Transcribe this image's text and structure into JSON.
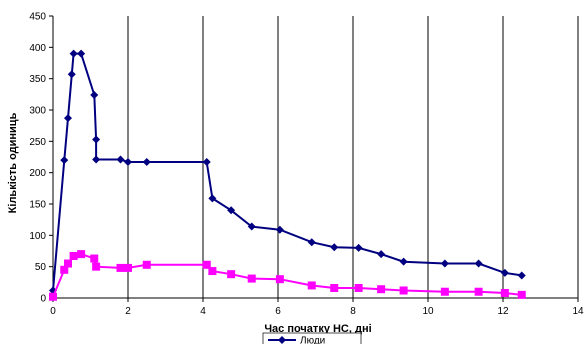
{
  "chart_data": {
    "type": "line",
    "xlabel": "Час початку НС, дні",
    "ylabel": "Кількість одиниць",
    "xlim": [
      0,
      14
    ],
    "ylim": [
      0,
      450
    ],
    "x_ticks": [
      0,
      2,
      4,
      6,
      8,
      10,
      12,
      14
    ],
    "y_ticks": [
      0,
      50,
      100,
      150,
      200,
      250,
      300,
      350,
      400,
      450
    ],
    "grid": "vertical",
    "legend_position": "bottom-center",
    "series": [
      {
        "name": "Люди",
        "color": "#000080",
        "marker": "diamond",
        "points": [
          [
            0.0,
            12
          ],
          [
            0.3,
            220
          ],
          [
            0.4,
            287
          ],
          [
            0.5,
            357
          ],
          [
            0.55,
            390
          ],
          [
            0.75,
            390
          ],
          [
            1.1,
            324
          ],
          [
            1.15,
            253
          ],
          [
            1.15,
            221
          ],
          [
            1.8,
            221
          ],
          [
            2.0,
            217
          ],
          [
            2.5,
            217
          ],
          [
            4.1,
            217
          ],
          [
            4.25,
            159
          ],
          [
            4.75,
            140
          ],
          [
            5.3,
            114
          ],
          [
            6.05,
            109
          ],
          [
            6.9,
            89
          ],
          [
            7.5,
            81
          ],
          [
            8.15,
            80
          ],
          [
            8.75,
            70
          ],
          [
            9.35,
            58
          ],
          [
            10.45,
            55
          ],
          [
            11.35,
            55
          ],
          [
            12.05,
            40
          ],
          [
            12.5,
            36
          ]
        ]
      },
      {
        "name": "",
        "color": "#FF00FF",
        "marker": "square",
        "points": [
          [
            0.0,
            2
          ],
          [
            0.3,
            45
          ],
          [
            0.4,
            55
          ],
          [
            0.55,
            67
          ],
          [
            0.75,
            70
          ],
          [
            1.1,
            63
          ],
          [
            1.15,
            50
          ],
          [
            1.8,
            48
          ],
          [
            2.0,
            48
          ],
          [
            2.5,
            53
          ],
          [
            4.1,
            53
          ],
          [
            4.25,
            43
          ],
          [
            4.75,
            38
          ],
          [
            5.3,
            31
          ],
          [
            6.05,
            30
          ],
          [
            6.9,
            20
          ],
          [
            7.5,
            16
          ],
          [
            8.15,
            16
          ],
          [
            8.75,
            14
          ],
          [
            9.35,
            12
          ],
          [
            10.45,
            10
          ],
          [
            11.35,
            10
          ],
          [
            12.05,
            8
          ],
          [
            12.5,
            5
          ]
        ]
      }
    ]
  }
}
